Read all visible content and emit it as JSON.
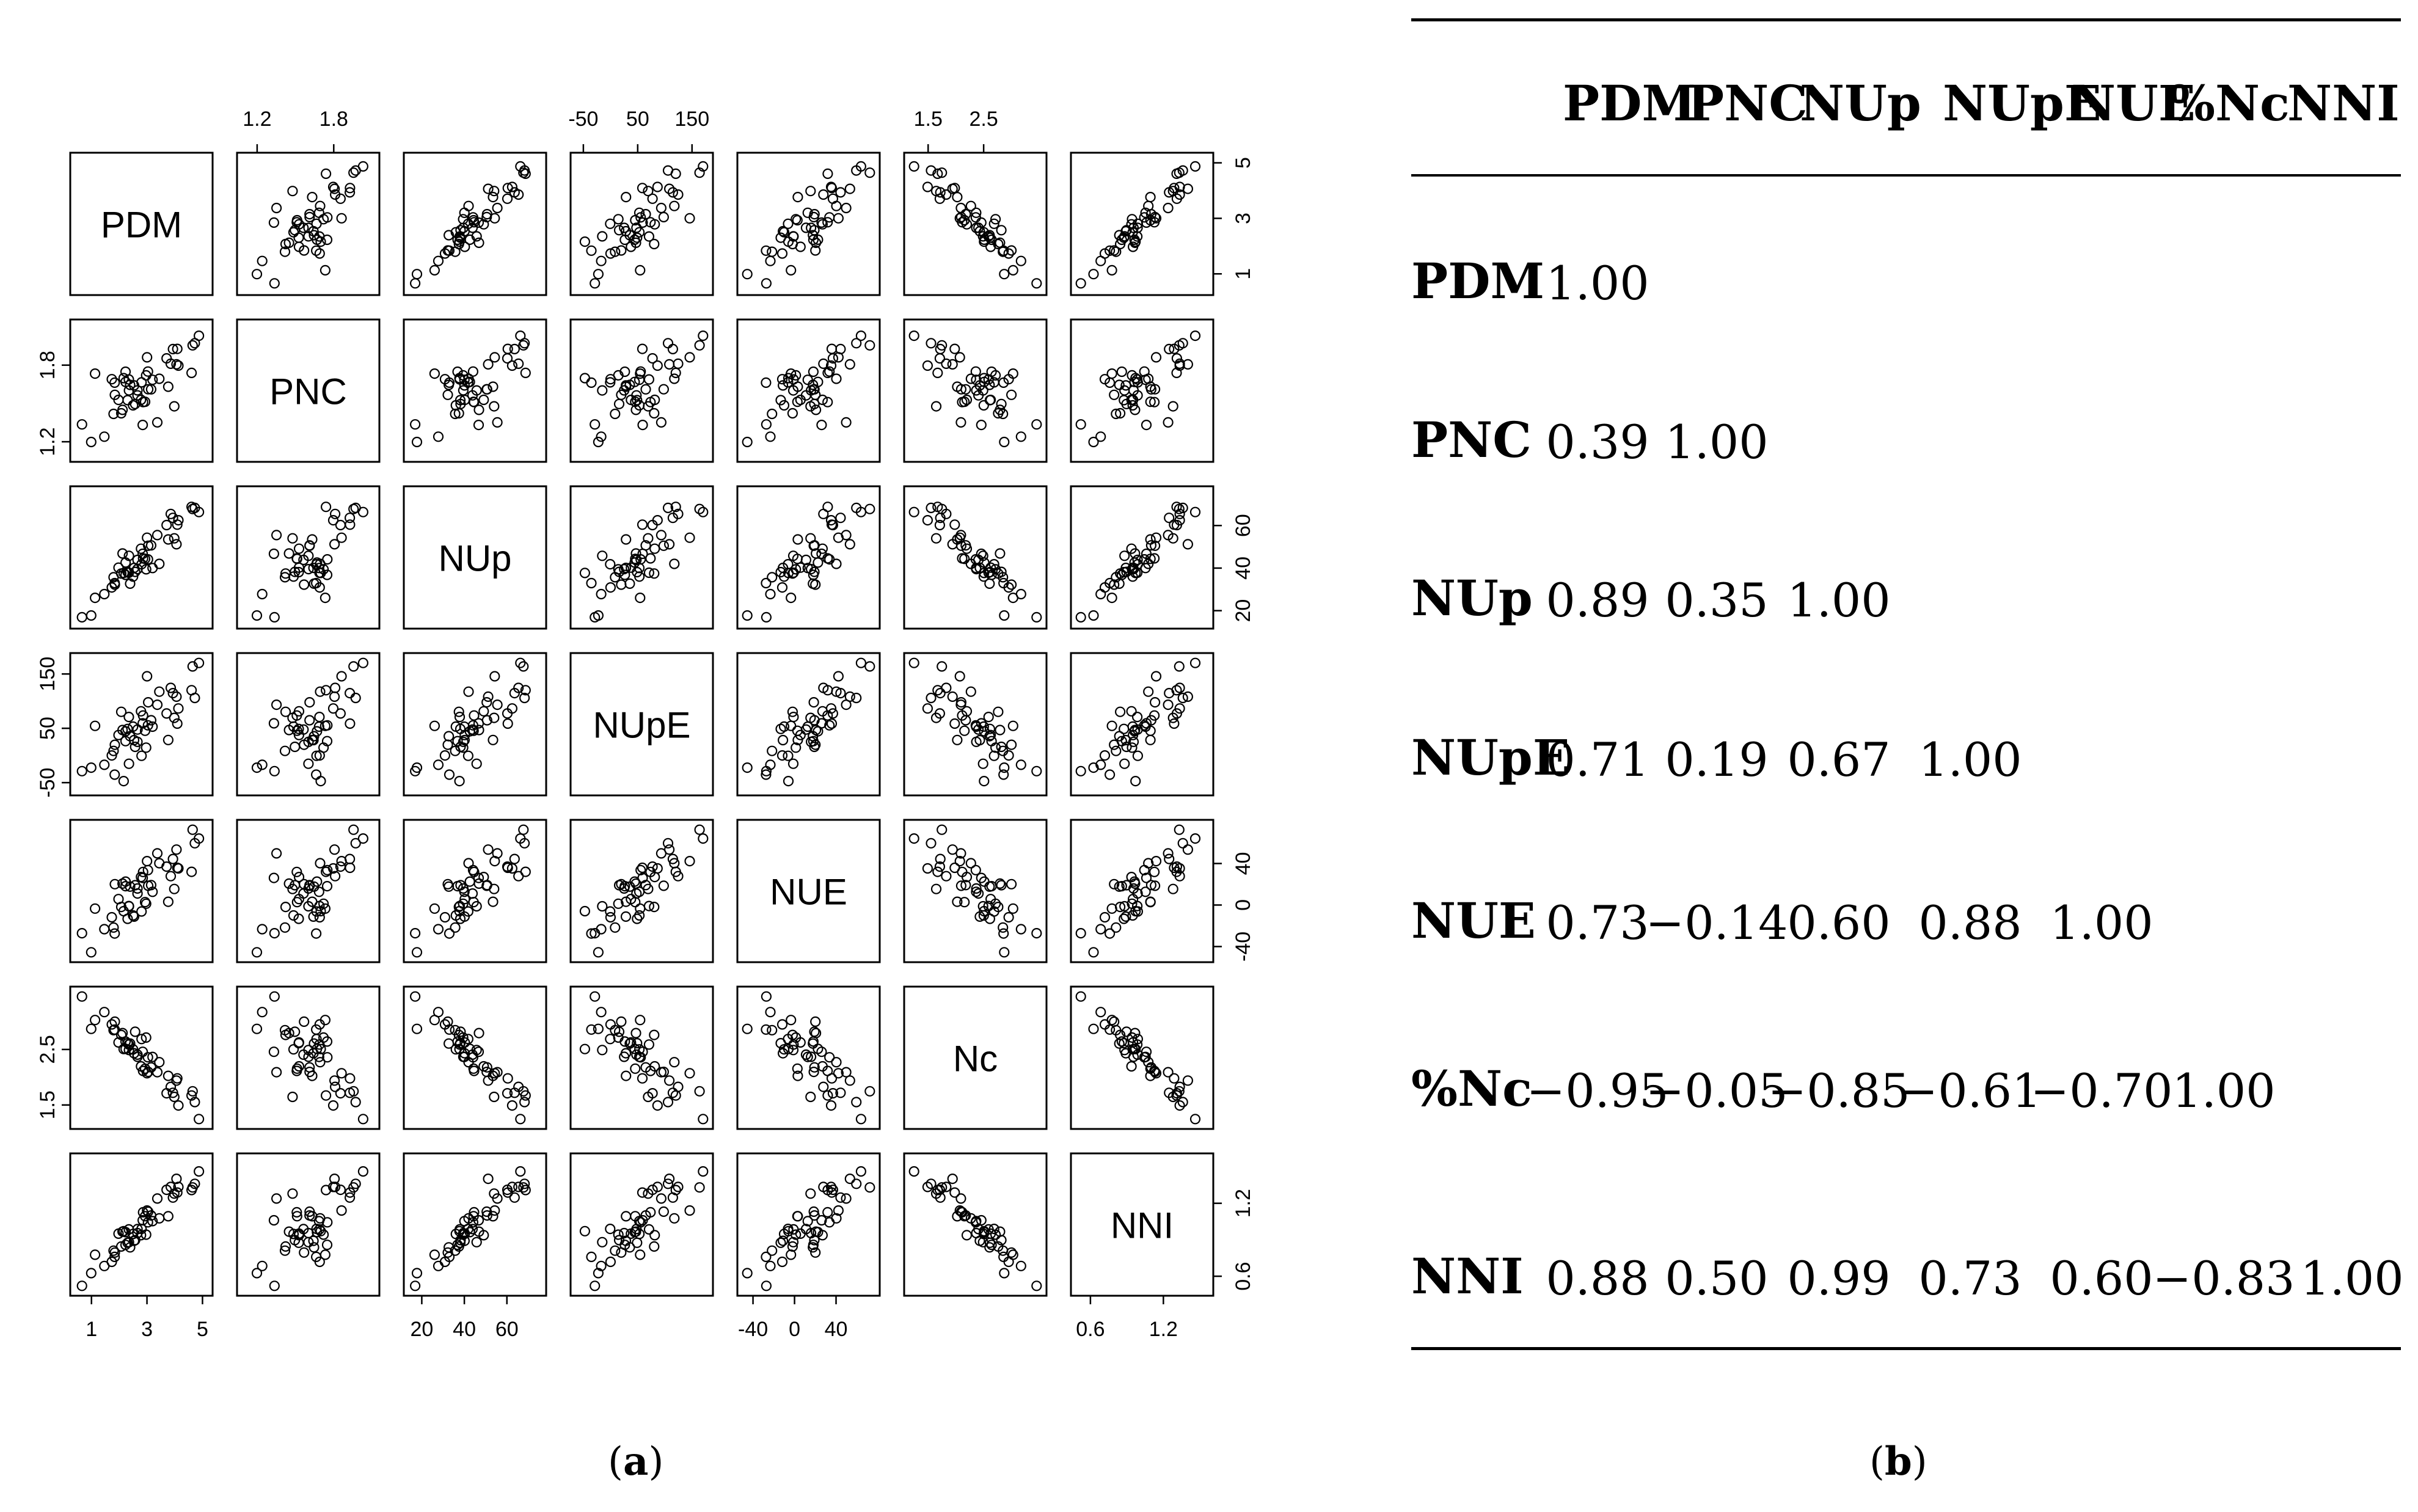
{
  "panels": {
    "a_label": "a",
    "b_label": "b"
  },
  "chart_data": [
    {
      "type": "scatter",
      "variables": [
        "PDM",
        "PNC",
        "NUp",
        "NUpE",
        "NUE",
        "Nc",
        "NNI"
      ],
      "ranges": {
        "PDM": [
          0.5,
          5.1
        ],
        "PNC": [
          1.1,
          2.1
        ],
        "NUp": [
          15,
          75
        ],
        "NUpE": [
          -60,
          175
        ],
        "NUE": [
          -48,
          75
        ],
        "Nc": [
          1.2,
          3.5
        ],
        "NNI": [
          0.5,
          1.55
        ]
      },
      "ticks": {
        "PDM": {
          "values": [
            1,
            3,
            5
          ],
          "labels": [
            "1",
            "3",
            "5"
          ]
        },
        "PNC": {
          "values": [
            1.2,
            1.8
          ],
          "labels": [
            "1.2",
            "1.8"
          ]
        },
        "NUp": {
          "values": [
            20,
            40,
            60
          ],
          "labels": [
            "20",
            "40",
            "60"
          ]
        },
        "NUpE": {
          "values": [
            -50,
            50,
            150
          ],
          "labels": [
            "-50",
            "50",
            "150"
          ]
        },
        "NUE": {
          "values": [
            -40,
            0,
            40
          ],
          "labels": [
            "-40",
            "0",
            "40"
          ]
        },
        "Nc": {
          "values": [
            1.5,
            2.5
          ],
          "labels": [
            "1.5",
            "2.5"
          ]
        },
        "NNI": {
          "values": [
            0.6,
            1.2
          ],
          "labels": [
            "0.6",
            "1.2"
          ]
        }
      },
      "correlations": [
        [
          1.0,
          0.39,
          0.89,
          0.71,
          0.73,
          -0.95,
          0.88
        ],
        [
          0.39,
          1.0,
          0.35,
          0.19,
          -0.14,
          -0.05,
          0.5
        ],
        [
          0.89,
          0.35,
          1.0,
          0.67,
          0.6,
          -0.85,
          0.99
        ],
        [
          0.71,
          0.19,
          0.67,
          1.0,
          0.88,
          -0.61,
          0.73
        ],
        [
          0.73,
          -0.14,
          0.6,
          0.88,
          1.0,
          -0.7,
          0.6
        ],
        [
          -0.95,
          -0.05,
          -0.85,
          -0.61,
          -0.7,
          1.0,
          -0.83
        ],
        [
          0.88,
          0.5,
          0.99,
          0.73,
          0.6,
          -0.83,
          1.0
        ]
      ],
      "n_points": 48
    },
    {
      "type": "table",
      "columns": [
        "PDM",
        "PNC",
        "NUp",
        "NUpE",
        "NUE",
        "%Nc",
        "NNI"
      ],
      "rows": [
        {
          "label": "PDM",
          "values": [
            "1.00"
          ]
        },
        {
          "label": "PNC",
          "values": [
            "0.39",
            "1.00"
          ]
        },
        {
          "label": "NUp",
          "values": [
            "0.89",
            "0.35",
            "1.00"
          ]
        },
        {
          "label": "NUpE",
          "values": [
            "0.71",
            "0.19",
            "0.67",
            "1.00"
          ]
        },
        {
          "label": "NUE",
          "values": [
            "0.73",
            "−0.14",
            "0.60",
            "0.88",
            "1.00"
          ]
        },
        {
          "label": "%Nc",
          "values": [
            "−0.95",
            "−0.05",
            "−0.85",
            "−0.61",
            "−0.70",
            "1.00"
          ]
        },
        {
          "label": "NNI",
          "values": [
            "0.88",
            "0.50",
            "0.99",
            "0.73",
            "0.60",
            "−0.83",
            "1.00"
          ]
        }
      ]
    }
  ]
}
